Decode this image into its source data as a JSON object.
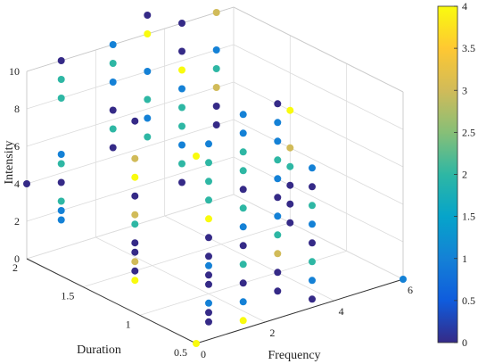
{
  "chart_data": {
    "type": "scatter",
    "subtype": "3d-scatter",
    "xlabel": "Frequency",
    "ylabel": "Duration",
    "zlabel": "Intensity",
    "xlim": [
      0,
      6
    ],
    "ylim": [
      0.5,
      2
    ],
    "zlim": [
      0,
      10
    ],
    "xticks": [
      "0",
      "2",
      "4",
      "6"
    ],
    "yticks": [
      "0.5",
      "1",
      "1.5",
      "2"
    ],
    "zticks": [
      "0",
      "2",
      "4",
      "6",
      "8",
      "10"
    ],
    "grid": true,
    "colorbar": {
      "colormap": "parula",
      "range": [
        0,
        4
      ],
      "ticks": [
        "0",
        "0.5",
        "1",
        "1.5",
        "2",
        "2.5",
        "3",
        "3.5",
        "4"
      ]
    },
    "points": [
      {
        "x": 0,
        "y": 0.5,
        "z": 0,
        "c": 4
      },
      {
        "x": 0,
        "y": 2,
        "z": 4,
        "c": 0
      },
      {
        "x": 0,
        "y": 0.5,
        "z": 10,
        "c": 4
      },
      {
        "x": 6,
        "y": 0.5,
        "z": 0,
        "c": 1
      },
      {
        "x": 1,
        "y": 2,
        "z": 10,
        "c": 0
      },
      {
        "x": 1,
        "y": 2,
        "z": 9,
        "c": 2
      },
      {
        "x": 1,
        "y": 2,
        "z": 8,
        "c": 2
      },
      {
        "x": 1,
        "y": 2,
        "z": 5,
        "c": 1
      },
      {
        "x": 1,
        "y": 2,
        "z": 4.5,
        "c": 2
      },
      {
        "x": 1,
        "y": 2,
        "z": 3.5,
        "c": 0
      },
      {
        "x": 1,
        "y": 2,
        "z": 2.5,
        "c": 2
      },
      {
        "x": 1,
        "y": 2,
        "z": 2,
        "c": 1
      },
      {
        "x": 1,
        "y": 2,
        "z": 1.5,
        "c": 1
      },
      {
        "x": 1.5,
        "y": 1.5,
        "z": 8,
        "c": 0
      },
      {
        "x": 1.5,
        "y": 1.5,
        "z": 6,
        "c": 3
      },
      {
        "x": 1.5,
        "y": 1.5,
        "z": 5,
        "c": 4
      },
      {
        "x": 1.5,
        "y": 1.5,
        "z": 4,
        "c": 0
      },
      {
        "x": 1.5,
        "y": 1.5,
        "z": 3,
        "c": 3
      },
      {
        "x": 1.5,
        "y": 1.5,
        "z": 2.5,
        "c": 2
      },
      {
        "x": 1.5,
        "y": 1.5,
        "z": 1.5,
        "c": 0
      },
      {
        "x": 1.5,
        "y": 1.5,
        "z": 1,
        "c": 0
      },
      {
        "x": 1.5,
        "y": 1.5,
        "z": 0.5,
        "c": 3
      },
      {
        "x": 1.5,
        "y": 1.5,
        "z": 0,
        "c": 0
      },
      {
        "x": 1.5,
        "y": 1.5,
        "z": -0.5,
        "c": 4
      },
      {
        "x": 2.5,
        "y": 2,
        "z": 10,
        "c": 1
      },
      {
        "x": 2.5,
        "y": 2,
        "z": 9,
        "c": 2
      },
      {
        "x": 2.5,
        "y": 2,
        "z": 8,
        "c": 1
      },
      {
        "x": 2.5,
        "y": 2,
        "z": 6.5,
        "c": 0
      },
      {
        "x": 2.5,
        "y": 2,
        "z": 5.5,
        "c": 2
      },
      {
        "x": 2.5,
        "y": 2,
        "z": 4.5,
        "c": 0
      },
      {
        "x": 2,
        "y": 1,
        "z": 8,
        "c": 1
      },
      {
        "x": 2,
        "y": 1,
        "z": 7,
        "c": 2
      },
      {
        "x": 2,
        "y": 1,
        "z": 6,
        "c": 2
      },
      {
        "x": 2,
        "y": 1,
        "z": 5,
        "c": 2
      },
      {
        "x": 2,
        "y": 1,
        "z": 4,
        "c": 4
      },
      {
        "x": 2,
        "y": 1,
        "z": 3,
        "c": 0
      },
      {
        "x": 2,
        "y": 1,
        "z": 2,
        "c": 0
      },
      {
        "x": 2,
        "y": 1,
        "z": 1.5,
        "c": 1
      },
      {
        "x": 2,
        "y": 1,
        "z": 1,
        "c": 0
      },
      {
        "x": 2,
        "y": 1,
        "z": 0.5,
        "c": 0
      },
      {
        "x": 2,
        "y": 1,
        "z": -0.5,
        "c": 1
      },
      {
        "x": 2,
        "y": 1,
        "z": -1,
        "c": 0
      },
      {
        "x": 2,
        "y": 1,
        "z": -1.5,
        "c": 0
      },
      {
        "x": 3.5,
        "y": 2,
        "z": 13,
        "c": 4
      },
      {
        "x": 3.5,
        "y": 2,
        "z": 11,
        "c": 0
      },
      {
        "x": 3.5,
        "y": 2,
        "z": 10,
        "c": 4
      },
      {
        "x": 3.5,
        "y": 2,
        "z": 8,
        "c": 1
      },
      {
        "x": 3.5,
        "y": 2,
        "z": 6.5,
        "c": 2
      },
      {
        "x": 3.5,
        "y": 2,
        "z": 5.5,
        "c": 1
      },
      {
        "x": 3.5,
        "y": 2,
        "z": 4.5,
        "c": 2
      },
      {
        "x": 3,
        "y": 1,
        "z": 9,
        "c": 1
      },
      {
        "x": 3,
        "y": 1,
        "z": 8,
        "c": 1
      },
      {
        "x": 3,
        "y": 1,
        "z": 7,
        "c": 2
      },
      {
        "x": 3,
        "y": 1,
        "z": 6,
        "c": 2
      },
      {
        "x": 3,
        "y": 1,
        "z": 5,
        "c": 0
      },
      {
        "x": 3,
        "y": 1,
        "z": 4,
        "c": 2
      },
      {
        "x": 3,
        "y": 1,
        "z": 3,
        "c": 1
      },
      {
        "x": 3,
        "y": 1,
        "z": 2,
        "c": 0
      },
      {
        "x": 3,
        "y": 1,
        "z": 1,
        "c": 2
      },
      {
        "x": 3,
        "y": 1,
        "z": 0,
        "c": 0
      },
      {
        "x": 3,
        "y": 1,
        "z": -1,
        "c": 1
      },
      {
        "x": 3,
        "y": 1,
        "z": -2,
        "c": 4
      },
      {
        "x": 4.5,
        "y": 2,
        "z": 10,
        "c": 0
      },
      {
        "x": 4.5,
        "y": 2,
        "z": 8.5,
        "c": 0
      },
      {
        "x": 4.5,
        "y": 2,
        "z": 7.5,
        "c": 4
      },
      {
        "x": 4.5,
        "y": 2,
        "z": 6.5,
        "c": 1
      },
      {
        "x": 4.5,
        "y": 2,
        "z": 5.5,
        "c": 2
      },
      {
        "x": 4.5,
        "y": 2,
        "z": 4.5,
        "c": 2
      },
      {
        "x": 4.5,
        "y": 2,
        "z": 3.5,
        "c": 1
      },
      {
        "x": 4.5,
        "y": 2,
        "z": 2.5,
        "c": 2
      },
      {
        "x": 4.5,
        "y": 2,
        "z": 1.5,
        "c": 0
      },
      {
        "x": 4,
        "y": 1,
        "z": 9,
        "c": 0
      },
      {
        "x": 4,
        "y": 1,
        "z": 8,
        "c": 1
      },
      {
        "x": 4,
        "y": 1,
        "z": 7,
        "c": 1
      },
      {
        "x": 4,
        "y": 1,
        "z": 6,
        "c": 2
      },
      {
        "x": 4,
        "y": 1,
        "z": 5,
        "c": 1
      },
      {
        "x": 4,
        "y": 1,
        "z": 4,
        "c": 0
      },
      {
        "x": 4,
        "y": 1,
        "z": 3,
        "c": 1
      },
      {
        "x": 4,
        "y": 1,
        "z": 2,
        "c": 2
      },
      {
        "x": 4,
        "y": 1,
        "z": 1,
        "c": 3
      },
      {
        "x": 4,
        "y": 1,
        "z": 0,
        "c": 0
      },
      {
        "x": 4,
        "y": 1,
        "z": -1,
        "c": 0
      },
      {
        "x": 5.5,
        "y": 2,
        "z": 10,
        "c": 3
      },
      {
        "x": 5.5,
        "y": 2,
        "z": 8,
        "c": 1
      },
      {
        "x": 5.5,
        "y": 2,
        "z": 7,
        "c": 2
      },
      {
        "x": 5.5,
        "y": 2,
        "z": 6,
        "c": 3
      },
      {
        "x": 5.5,
        "y": 2,
        "z": 5,
        "c": 0
      },
      {
        "x": 5.5,
        "y": 2,
        "z": 4,
        "c": 0
      },
      {
        "x": 5,
        "y": 1,
        "z": 5,
        "c": 1
      },
      {
        "x": 5,
        "y": 1,
        "z": 4,
        "c": 0
      },
      {
        "x": 5,
        "y": 1,
        "z": 3,
        "c": 2
      },
      {
        "x": 5,
        "y": 1,
        "z": 2,
        "c": 1
      },
      {
        "x": 5,
        "y": 1,
        "z": 1,
        "c": 0
      },
      {
        "x": 5,
        "y": 1,
        "z": 0,
        "c": 2
      },
      {
        "x": 5,
        "y": 1,
        "z": -1,
        "c": 1
      },
      {
        "x": 5,
        "y": 1,
        "z": -2,
        "c": 0
      },
      {
        "x": 6,
        "y": 1.5,
        "z": 6,
        "c": 4
      },
      {
        "x": 6,
        "y": 1.5,
        "z": 4,
        "c": 3
      },
      {
        "x": 6,
        "y": 1.5,
        "z": 3,
        "c": 2
      },
      {
        "x": 6,
        "y": 1.5,
        "z": 2,
        "c": 0
      },
      {
        "x": 6,
        "y": 1.5,
        "z": 1,
        "c": 0
      },
      {
        "x": 6,
        "y": 1.5,
        "z": 0,
        "c": 0
      }
    ]
  }
}
